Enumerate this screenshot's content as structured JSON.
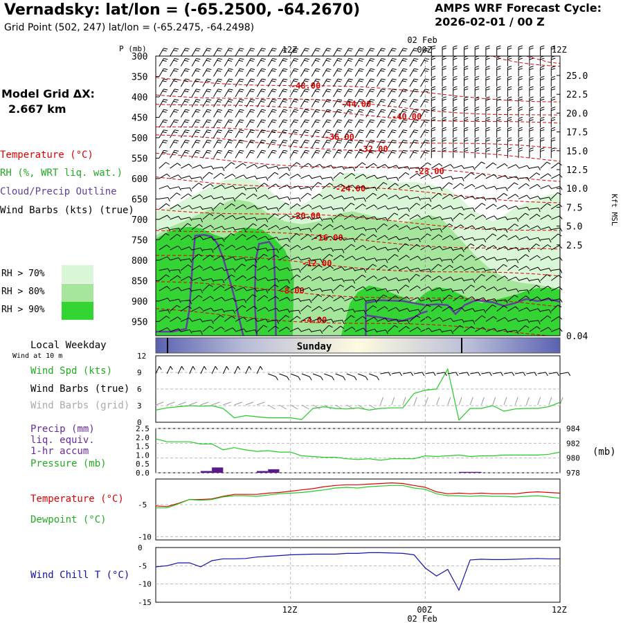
{
  "header": {
    "title": "Vernadsky:  lat/lon = (-65.2500, -64.2670)",
    "subtitle": "Grid Point (502, 247) lat/lon = (-65.2475, -64.2498)",
    "cycle_label": "AMPS WRF Forecast Cycle:",
    "cycle_value": "2026-02-01 / 00  Z",
    "grid_label": "Model Grid ΔX:",
    "grid_value": "2.667 km"
  },
  "legend": {
    "temperature": "Temperature (°C)",
    "rh": "RH (%, WRT liq. wat.)",
    "cloud": "Cloud/Precip Outline",
    "wind": "Wind Barbs (kts) (true)",
    "rh70": "RH > 70%",
    "rh80": "RH > 80%",
    "rh90": "RH > 90%"
  },
  "colors": {
    "rh70": "#d9f7d6",
    "rh80": "#a5e59c",
    "rh90": "#33d433",
    "temp": "#e00000",
    "cloud": "#6040a0",
    "wind_green": "#22cc22",
    "chill": "#1010b0",
    "precip": "#5a1a8c"
  },
  "time_axis": {
    "top_ticks": [
      "12Z",
      "00Z",
      "12Z"
    ],
    "date_label": "02 Feb",
    "bottom_ticks": [
      "12Z",
      "00Z",
      "12Z"
    ]
  },
  "weekday": {
    "label": "Local Weekday",
    "sub": "Wind at 10 m",
    "day": "Sunday"
  },
  "panel_labels": {
    "wind_spd": "Wind Spd (kts)",
    "wind_true": "Wind Barbs (true)",
    "wind_grid": "Wind Barbs (grid)",
    "precip1": "Precip (mm)",
    "precip2": "liq. equiv.",
    "precip3": "1-hr accum",
    "pressure": "Pressure (mb)",
    "pressure_unit": "(mb)",
    "temperature": "Temperature (°C)",
    "dewpoint": "Dewpoint (°C)",
    "windchill": "Wind Chill T (°C)"
  },
  "chart_data": [
    {
      "type": "heatmap",
      "name": "cross-section",
      "ylabel": "P (mb)",
      "yticks": [
        "300",
        "350",
        "400",
        "450",
        "500",
        "550",
        "600",
        "650",
        "700",
        "750",
        "800",
        "850",
        "900",
        "950"
      ],
      "right_ylabel": "Kft MSL",
      "right_ticks": [
        "25.0",
        "22.5",
        "20.0",
        "17.5",
        "15.0",
        "12.5",
        "10.0",
        "7.5",
        "5.0",
        "2.5",
        "0.04"
      ],
      "x_range_hours": [
        0,
        36
      ],
      "isotherms": [
        {
          "label": "-48.00",
          "value": -48,
          "hour": 13,
          "p": 373
        },
        {
          "label": "-44.00",
          "value": -44,
          "hour": 17.5,
          "p": 418
        },
        {
          "label": "-40.00",
          "value": -40,
          "hour": 22,
          "p": 448
        },
        {
          "label": "-36.00",
          "value": -36,
          "hour": 16,
          "p": 498
        },
        {
          "label": "-32.00",
          "value": -32,
          "hour": 19,
          "p": 528
        },
        {
          "label": "-28.00",
          "value": -28,
          "hour": 24,
          "p": 582
        },
        {
          "label": "-24.00",
          "value": -24,
          "hour": 17,
          "p": 625
        },
        {
          "label": "-20.00",
          "value": -20,
          "hour": 13,
          "p": 692
        },
        {
          "label": "-16.00",
          "value": -16,
          "hour": 15,
          "p": 745
        },
        {
          "label": "-12.00",
          "value": -12,
          "hour": 14,
          "p": 808
        },
        {
          "label": "-8.00",
          "value": -8,
          "hour": 12,
          "p": 875
        },
        {
          "label": "-4.00",
          "value": -4,
          "hour": 14,
          "p": 947
        }
      ]
    },
    {
      "type": "line",
      "name": "wind-speed",
      "y_ticks": [
        "12",
        "9",
        "6",
        "3",
        "0"
      ],
      "ylim": [
        0,
        12
      ],
      "series": [
        {
          "values": [
            2.2,
            2.6,
            2.8,
            3.0,
            2.9,
            3.0,
            2.5,
            0.8,
            1.2,
            1.0,
            0.8,
            0.8,
            0.8,
            0.5,
            2.5,
            2.8,
            2.5,
            2.4,
            2.6,
            2.2,
            2.5,
            2.6,
            2.6,
            5.2,
            5.8,
            6.0,
            9.6,
            0.4,
            2.5,
            2.5,
            3.0,
            2.0,
            2.4,
            2.5,
            2.5,
            2.8,
            3.6
          ]
        }
      ]
    },
    {
      "type": "bar",
      "name": "precip-pressure",
      "left_ticks": [
        "2.5",
        "2.0",
        "1.5",
        "1.0",
        "0.5",
        "0.0"
      ],
      "right_ticks": [
        "984",
        "982",
        "980",
        "978"
      ],
      "precip_hours": [
        4,
        5,
        9,
        10,
        27,
        28
      ],
      "precip_values": [
        0.1,
        0.3,
        0.1,
        0.2,
        0.05,
        0.05
      ],
      "pressure_values": [
        982.6,
        982.2,
        982.2,
        982.2,
        981.9,
        981.9,
        981.1,
        981.4,
        981.1,
        980.9,
        981.0,
        980.8,
        980.8,
        980.3,
        980.2,
        980.1,
        980.1,
        979.9,
        979.8,
        979.9,
        979.7,
        979.9,
        979.9,
        979.9,
        980.3,
        980.2,
        980.3,
        980.4,
        980.2,
        980.3,
        980.3,
        980.4,
        980.4,
        980.4,
        980.4,
        980.5,
        980.8
      ],
      "ylim_left": [
        0,
        2.5
      ],
      "ylim_right": [
        978,
        984
      ]
    },
    {
      "type": "line",
      "name": "temperature-dewpoint",
      "y_ticks": [
        "-5",
        "-10"
      ],
      "ylim": [
        -10.5,
        -1
      ],
      "series": [
        {
          "name": "Temperature (°C)",
          "color": "#e00000",
          "values": [
            -5.2,
            -5.3,
            -4.8,
            -4.2,
            -4.2,
            -4.1,
            -3.7,
            -3.4,
            -3.4,
            -3.4,
            -3.2,
            -3.1,
            -2.9,
            -2.7,
            -2.5,
            -2.2,
            -2.0,
            -1.9,
            -1.9,
            -1.8,
            -1.7,
            -1.6,
            -1.7,
            -2.0,
            -2.3,
            -3.0,
            -3.3,
            -3.2,
            -3.3,
            -3.2,
            -3.3,
            -3.3,
            -3.3,
            -3.1,
            -3.0,
            -3.1,
            -3.2
          ]
        },
        {
          "name": "Dewpoint (°C)",
          "color": "#22cc22",
          "values": [
            -5.5,
            -5.5,
            -4.9,
            -4.2,
            -4.3,
            -4.2,
            -3.8,
            -3.6,
            -3.6,
            -3.7,
            -3.5,
            -3.3,
            -3.2,
            -3.1,
            -2.9,
            -2.7,
            -2.4,
            -2.3,
            -2.4,
            -2.2,
            -2.1,
            -2.0,
            -2.0,
            -2.4,
            -2.6,
            -3.3,
            -3.6,
            -3.6,
            -3.7,
            -3.6,
            -3.7,
            -3.7,
            -3.8,
            -3.7,
            -3.6,
            -3.8,
            -4.0
          ]
        }
      ]
    },
    {
      "type": "line",
      "name": "wind-chill",
      "y_ticks": [
        "0",
        "-5",
        "-10",
        "-15"
      ],
      "ylim": [
        -15,
        0
      ],
      "series": [
        {
          "values": [
            -5.3,
            -5.0,
            -4.2,
            -4.2,
            -5.3,
            -3.6,
            -3.1,
            -3.1,
            -3.0,
            -2.6,
            -2.4,
            -2.2,
            -2.0,
            -1.9,
            -1.8,
            -1.8,
            -1.8,
            -1.6,
            -1.6,
            -1.4,
            -1.4,
            -1.5,
            -1.6,
            -2.0,
            -5.6,
            -7.8,
            -6.0,
            -11.7,
            -3.4,
            -3.2,
            -3.3,
            -3.3,
            -3.2,
            -3.1,
            -3.0,
            -3.1,
            -3.1
          ]
        }
      ]
    }
  ]
}
